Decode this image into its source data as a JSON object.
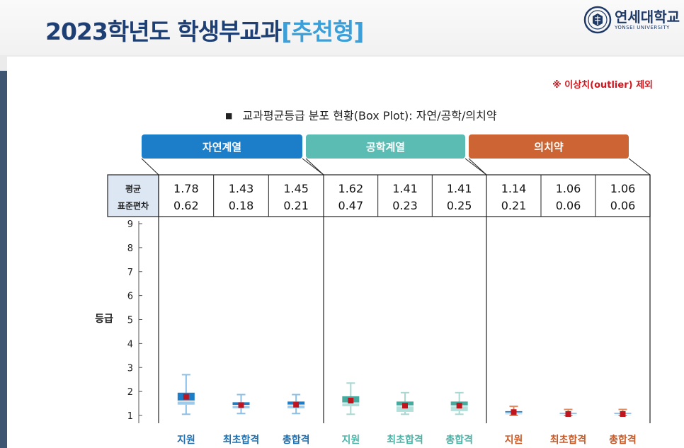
{
  "header": {
    "title_main": "2023학년도 학생부교과",
    "title_highlight": "[추천형]",
    "logo_kr": "연세대학교",
    "logo_en": "YONSEI UNIVERSITY"
  },
  "note": "※ 이상치(outlier) 제외",
  "subtitle": "교과평균등급 분포 현황(Box Plot): 자연/공학/의치약",
  "colors": {
    "title": "#1e3f73",
    "highlight": "#3d9fd8",
    "natural": "#1c7ec8",
    "engineering": "#5bbcb4",
    "medical": "#cc6533",
    "mean_marker": "#c0141f"
  },
  "chart_data": {
    "type": "box",
    "ylabel": "등급",
    "y_ticks": [
      "9",
      "8",
      "7",
      "6",
      "5",
      "4",
      "3",
      "2",
      "1"
    ],
    "ylim": [
      1,
      9
    ],
    "grid": false,
    "row_labels": [
      "평균",
      "표준편차"
    ],
    "groups": [
      {
        "name": "자연계열",
        "color": "#1c7ec8",
        "label_color": "#1d6fb0",
        "box_dark": "#1c7ec8",
        "box_light": "#9ccbec",
        "whisker": "#8bbfe6",
        "categories": [
          {
            "name": "지원",
            "mean": "1.78",
            "sd": "0.62",
            "mean_v": 1.78,
            "min": 1.05,
            "q1": 1.45,
            "median": 1.6,
            "q3": 1.95,
            "max": 2.7
          },
          {
            "name": "최초합격",
            "mean": "1.43",
            "sd": "0.18",
            "mean_v": 1.43,
            "min": 1.08,
            "q1": 1.3,
            "median": 1.42,
            "q3": 1.55,
            "max": 1.87
          },
          {
            "name": "총합격",
            "mean": "1.45",
            "sd": "0.21",
            "mean_v": 1.45,
            "min": 1.08,
            "q1": 1.3,
            "median": 1.43,
            "q3": 1.58,
            "max": 1.87
          }
        ]
      },
      {
        "name": "공학계열",
        "color": "#5bbcb4",
        "label_color": "#4cb2a6",
        "box_dark": "#46aa9e",
        "box_light": "#b3e0da",
        "whisker": "#a9d8d2",
        "categories": [
          {
            "name": "지원",
            "mean": "1.62",
            "sd": "0.47",
            "mean_v": 1.62,
            "min": 1.05,
            "q1": 1.38,
            "median": 1.52,
            "q3": 1.8,
            "max": 2.35
          },
          {
            "name": "최초합격",
            "mean": "1.41",
            "sd": "0.23",
            "mean_v": 1.41,
            "min": 1.05,
            "q1": 1.15,
            "median": 1.4,
            "q3": 1.58,
            "max": 1.95
          },
          {
            "name": "총합격",
            "mean": "1.41",
            "sd": "0.25",
            "mean_v": 1.41,
            "min": 1.05,
            "q1": 1.18,
            "median": 1.4,
            "q3": 1.58,
            "max": 1.95
          }
        ]
      },
      {
        "name": "의치약",
        "color": "#cc6533",
        "label_color": "#c85a28",
        "box_dark": "#2f7fc9",
        "box_light": "#9fc8ec",
        "whisker": "#e28a5e",
        "categories": [
          {
            "name": "지원",
            "mean": "1.14",
            "sd": "0.21",
            "mean_v": 1.14,
            "min": 1.0,
            "q1": 1.05,
            "median": 1.1,
            "q3": 1.18,
            "max": 1.38
          },
          {
            "name": "최초합격",
            "mean": "1.06",
            "sd": "0.06",
            "mean_v": 1.06,
            "min": 1.0,
            "q1": 1.02,
            "median": 1.05,
            "q3": 1.1,
            "max": 1.25
          },
          {
            "name": "총합격",
            "mean": "1.06",
            "sd": "0.06",
            "mean_v": 1.06,
            "min": 1.0,
            "q1": 1.02,
            "median": 1.05,
            "q3": 1.1,
            "max": 1.25
          }
        ]
      }
    ]
  }
}
